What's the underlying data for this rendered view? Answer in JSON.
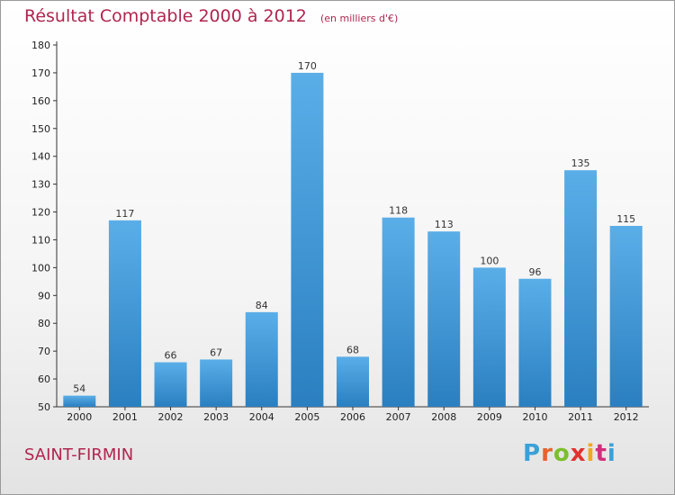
{
  "title": "Résultat Comptable 2000 à 2012",
  "unit_label": "(en milliers d'€)",
  "place_name": "SAINT-FIRMIN",
  "logo": {
    "text": "Proxiti",
    "letter_colors": [
      "#3aa0d8",
      "#e8632b",
      "#7bbf2c",
      "#e2322e",
      "#f2a81d",
      "#d12f7b",
      "#3aa0d8"
    ]
  },
  "colors": {
    "title": "#b0254f",
    "bar_light": "#5aaee8",
    "bar_dark": "#2a7fc0",
    "axis": "#333333"
  },
  "chart_data": {
    "type": "bar",
    "title": "Résultat Comptable 2000 à 2012",
    "ylabel": "(en milliers d'€)",
    "xlabel": "",
    "categories": [
      "2000",
      "2001",
      "2002",
      "2003",
      "2004",
      "2005",
      "2006",
      "2007",
      "2008",
      "2009",
      "2010",
      "2011",
      "2012"
    ],
    "values": [
      54,
      117,
      66,
      67,
      84,
      170,
      68,
      118,
      113,
      100,
      96,
      135,
      115
    ],
    "ylim": [
      50,
      180
    ],
    "yticks": [
      50,
      60,
      70,
      80,
      90,
      100,
      110,
      120,
      130,
      140,
      150,
      160,
      170,
      180
    ],
    "grid": false
  }
}
